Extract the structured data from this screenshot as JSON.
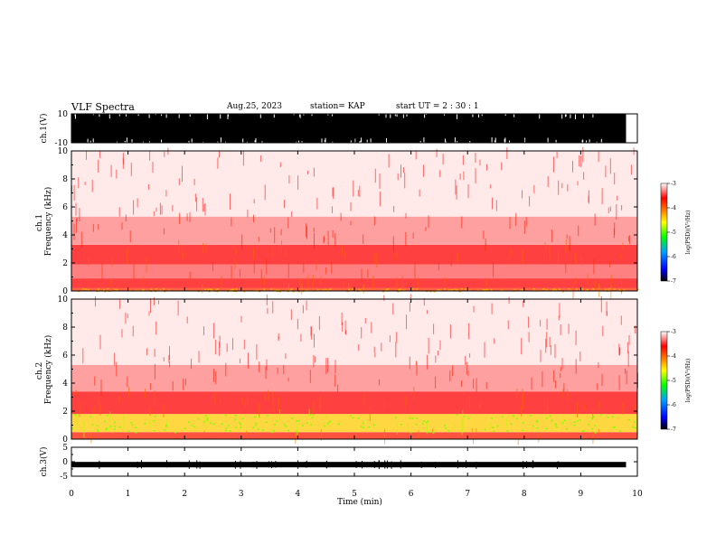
{
  "header": {
    "title": "VLF Spectra",
    "date": "Aug.25, 2023",
    "station": "station= KAP",
    "start_ut": "start  UT =   2 : 30 : 1"
  },
  "chart_data": [
    {
      "type": "line",
      "panel": "ch1-waveform",
      "ylabel": "ch.1(V)",
      "ylim": [
        -10,
        10
      ],
      "y_ticks": [
        "10",
        "-10"
      ],
      "xlim": [
        0,
        10
      ],
      "data_end_min": 9.8,
      "x_ticks": [
        "0",
        "1",
        "2",
        "3",
        "4",
        "5",
        "6",
        "7",
        "8",
        "9",
        "10"
      ],
      "fill": "saturated: signal spans approximately -10 to 10 V across the record"
    },
    {
      "type": "heatmap",
      "panel": "ch1-spectrogram",
      "ylabel": "ch.1\nFrequency (kHz)",
      "ylabel_lines": [
        "ch.1",
        "Frequency (kHz)"
      ],
      "ylim": [
        0,
        10
      ],
      "y_ticks": [
        "0",
        "2",
        "4",
        "6",
        "8",
        "10"
      ],
      "xlim": [
        0,
        10
      ],
      "colorbar": {
        "label": "log(PSD)(V²/Hz)",
        "min": -7,
        "max": -3,
        "ticks": [
          "-3",
          "-4",
          "-5",
          "-6",
          "-7"
        ]
      },
      "bands": [
        {
          "f_lo": 0.0,
          "f_hi": 0.2,
          "level": -3.8
        },
        {
          "f_lo": 0.2,
          "f_hi": 0.9,
          "level": -3.6
        },
        {
          "f_lo": 0.9,
          "f_hi": 1.9,
          "level": -3.4
        },
        {
          "f_lo": 1.9,
          "f_hi": 3.3,
          "level": -3.6
        },
        {
          "f_lo": 3.3,
          "f_hi": 5.3,
          "level": -3.3
        },
        {
          "f_lo": 5.3,
          "f_hi": 10.0,
          "level": -3.15
        }
      ]
    },
    {
      "type": "heatmap",
      "panel": "ch2-spectrogram",
      "ylabel": "ch.2\nFrequency (kHz)",
      "ylabel_lines": [
        "ch.2",
        "Frequency (kHz)"
      ],
      "ylim": [
        0,
        10
      ],
      "y_ticks": [
        "0",
        "2",
        "4",
        "6",
        "8",
        "10"
      ],
      "xlim": [
        0,
        10
      ],
      "colorbar": {
        "label": "log(PSD)(V²/Hz)",
        "min": -7,
        "max": -3,
        "ticks": [
          "-3",
          "-4",
          "-5",
          "-6",
          "-7"
        ]
      },
      "bands": [
        {
          "f_lo": 0.0,
          "f_hi": 0.5,
          "level": -3.7
        },
        {
          "f_lo": 0.5,
          "f_hi": 1.8,
          "level": -4.4
        },
        {
          "f_lo": 1.8,
          "f_hi": 3.4,
          "level": -3.6
        },
        {
          "f_lo": 3.4,
          "f_hi": 5.3,
          "level": -3.3
        },
        {
          "f_lo": 5.3,
          "f_hi": 10.0,
          "level": -3.15
        }
      ]
    },
    {
      "type": "line",
      "panel": "ch3-waveform",
      "ylabel": "ch.3(V)",
      "ylim": [
        -5,
        5
      ],
      "y_ticks": [
        "5",
        "0",
        "-5"
      ],
      "xlim": [
        0,
        10
      ],
      "data_end_min": 9.8,
      "xlabel": "Time (min)",
      "x_ticks": [
        "0",
        "1",
        "2",
        "3",
        "4",
        "5",
        "6",
        "7",
        "8",
        "9",
        "10"
      ],
      "fill": "narrow band around -1 V, amplitude about ±0.5 V"
    }
  ]
}
